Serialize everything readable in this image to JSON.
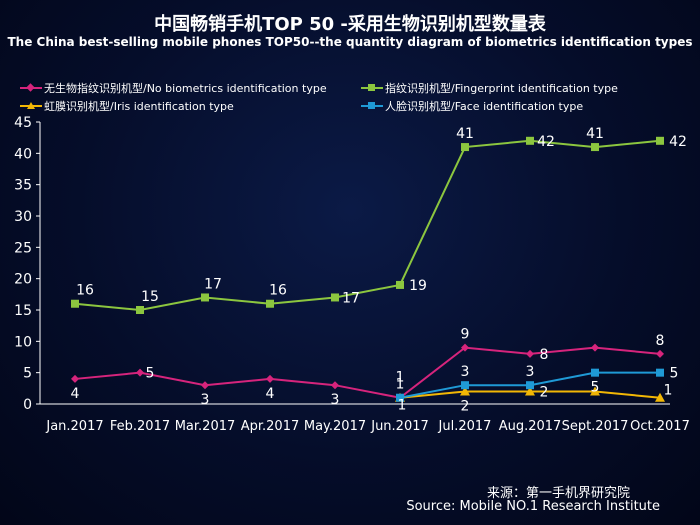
{
  "chart_data": {
    "type": "line",
    "title": "中国畅销手机TOP 50 -采用生物识别机型数量表",
    "subtitle": "The China best-selling mobile phones TOP50--the quantity diagram of biometrics identification types",
    "categories": [
      "Jan.2017",
      "Feb.2017",
      "Mar.2017",
      "Apr.2017",
      "May.2017",
      "Jun.2017",
      "Jul.2017",
      "Aug.2017",
      "Sept.2017",
      "Oct.2017"
    ],
    "ylim": [
      0,
      45
    ],
    "yticks": [
      0,
      5,
      10,
      15,
      20,
      25,
      30,
      35,
      40,
      45
    ],
    "legend_position": "top",
    "series": [
      {
        "name": "无生物指纹识别机型/No biometrics identification type",
        "color": "#d6247c",
        "marker": "diamond",
        "values": [
          4,
          5,
          3,
          4,
          3,
          1,
          9,
          8,
          9,
          8
        ],
        "labels": [
          "4",
          "5",
          "3",
          "4",
          "3",
          "1",
          "9",
          "8",
          "",
          "8"
        ]
      },
      {
        "name": "指纹识别机型/Fingerprint identification type",
        "color": "#8cc63f",
        "marker": "square",
        "values": [
          16,
          15,
          17,
          16,
          17,
          19,
          41,
          42,
          41,
          42
        ],
        "labels": [
          "16",
          "15",
          "17",
          "16",
          "17",
          "19",
          "41",
          "42",
          "41",
          "42"
        ]
      },
      {
        "name": "虹膜识别机型/Iris identification type",
        "color": "#f2b705",
        "marker": "triangle",
        "values": [
          null,
          null,
          null,
          null,
          null,
          1,
          2,
          2,
          2,
          1
        ],
        "labels": [
          "",
          "",
          "",
          "",
          "",
          "",
          "2",
          "2",
          "",
          "1"
        ]
      },
      {
        "name": "人脸识别机型/Face identification type",
        "color": "#1f9ad6",
        "marker": "square",
        "values": [
          null,
          null,
          null,
          null,
          null,
          1,
          3,
          3,
          5,
          5
        ],
        "labels": [
          "",
          "",
          "",
          "",
          "",
          "",
          "3",
          "3",
          "5",
          "5"
        ]
      }
    ]
  },
  "source": {
    "cn": "来源：第一手机界研究院",
    "en": "Source: Mobile NO.1 Research Institute"
  }
}
